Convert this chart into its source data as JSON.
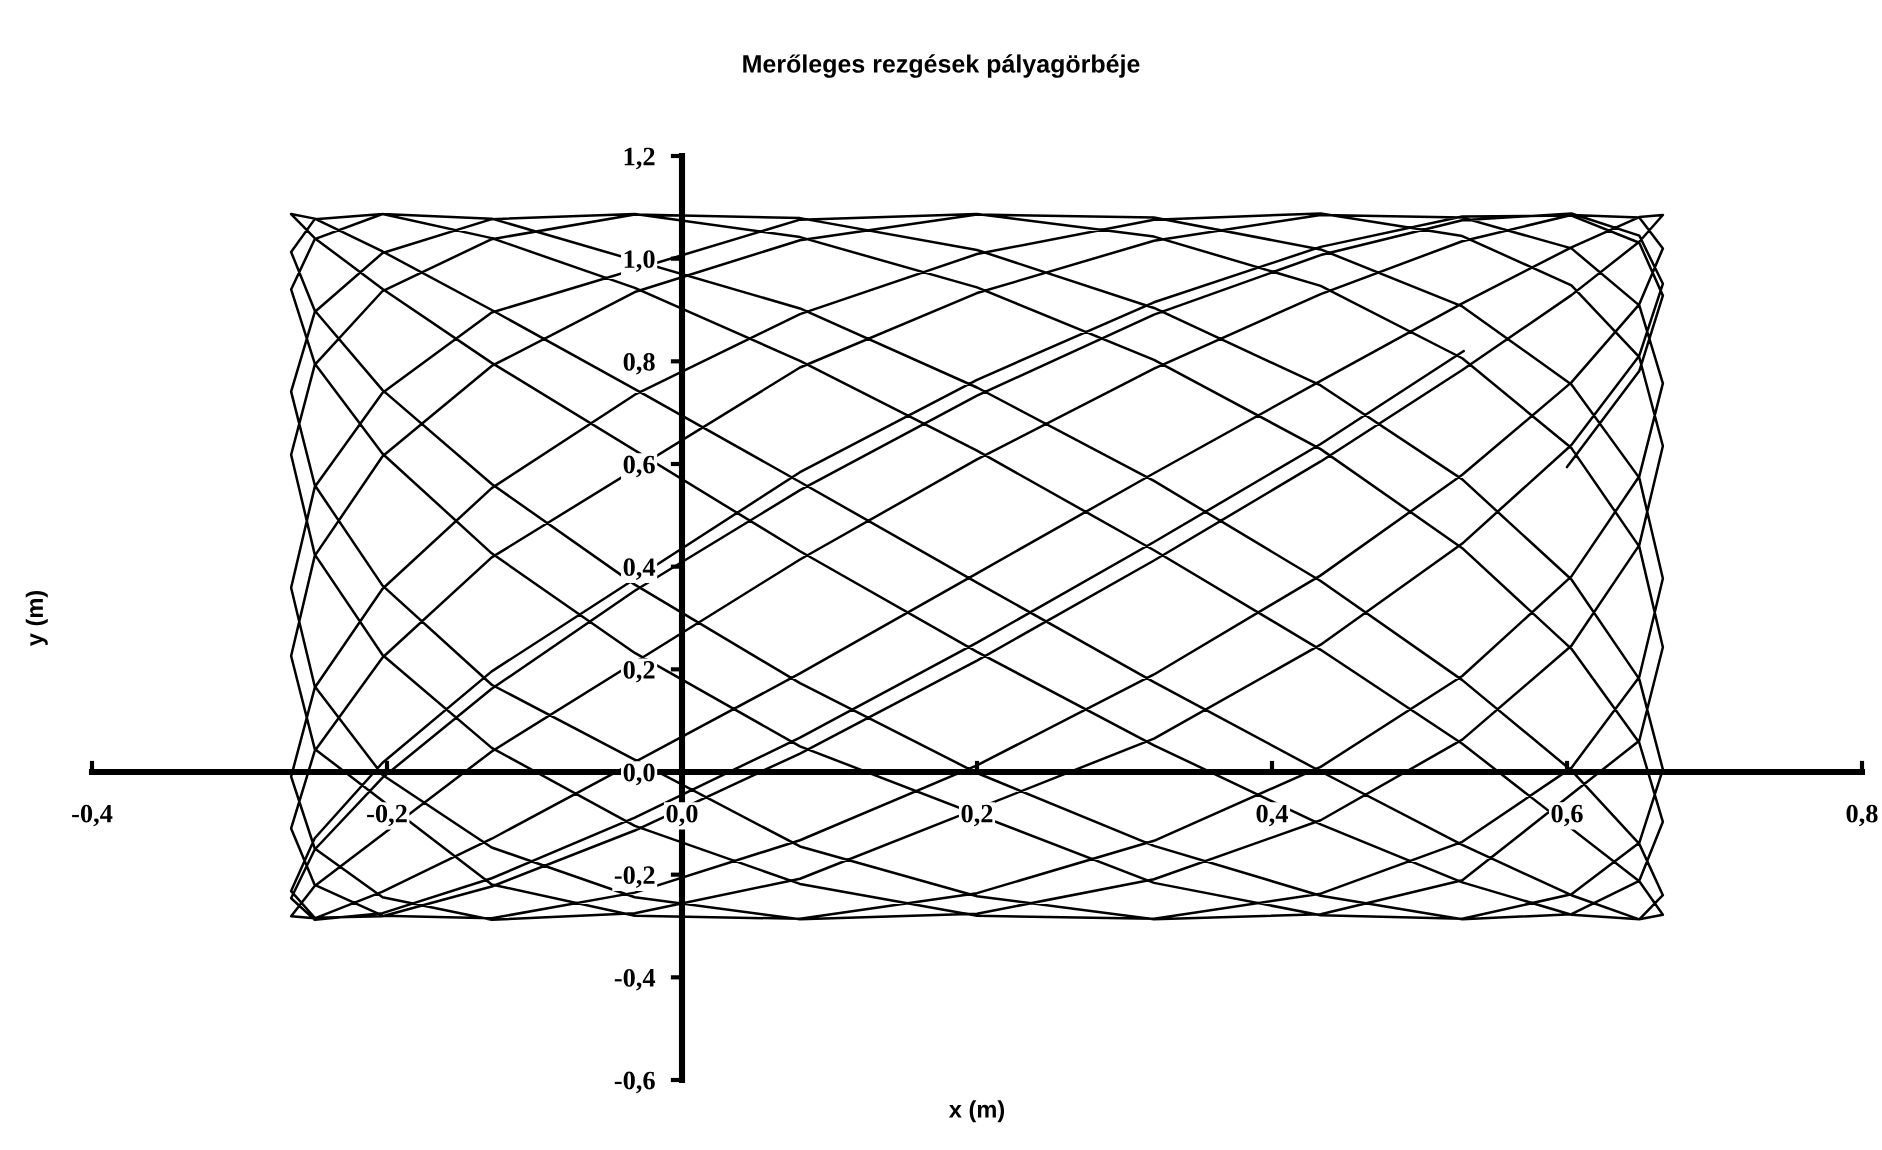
{
  "chart_data": {
    "type": "line",
    "title": "Merőleges rezgések pályagörbéje",
    "xlabel": "x (m)",
    "ylabel": "y (m)",
    "xlim": [
      -0.4,
      0.8
    ],
    "ylim": [
      -0.6,
      1.2
    ],
    "xticks": [
      {
        "value": -0.4,
        "label": "-0,4"
      },
      {
        "value": -0.2,
        "label": "-0,2"
      },
      {
        "value": 0,
        "label": "0,0"
      },
      {
        "value": 0.2,
        "label": "0,2"
      },
      {
        "value": 0.4,
        "label": "0,4"
      },
      {
        "value": 0.6,
        "label": "0,6"
      },
      {
        "value": 0.8,
        "label": "0,8"
      }
    ],
    "yticks": [
      {
        "value": -0.6,
        "label": "-0,6"
      },
      {
        "value": -0.4,
        "label": "-0,4"
      },
      {
        "value": -0.2,
        "label": "-0,2"
      },
      {
        "value": 0,
        "label": "0,0"
      },
      {
        "value": 0.2,
        "label": "0,2"
      },
      {
        "value": 0.4,
        "label": "0,4"
      },
      {
        "value": 0.6,
        "label": "0,6"
      },
      {
        "value": 0.8,
        "label": "0,8"
      },
      {
        "value": 1.0,
        "label": "1,0"
      },
      {
        "value": 1.2,
        "label": "1,2"
      }
    ],
    "series": [
      {
        "color": "#000000",
        "x": [
          0.6,
          0.649,
          0.665,
          0.649,
          0.603,
          0.529,
          0.433,
          0.32,
          0.2,
          0.08,
          -0.129,
          -0.203,
          -0.249,
          -0.265,
          -0.249,
          -0.203,
          -0.129,
          -0.032,
          0.08,
          0.2,
          0.32,
          0.433,
          0.529,
          0.603,
          0.649,
          0.665,
          0.649,
          0.603,
          0.529,
          0.433,
          0.32,
          0.2,
          0.08,
          -0.129,
          -0.203,
          -0.249,
          -0.265,
          -0.249,
          -0.129,
          0.08,
          0.2,
          0.32,
          0.433,
          0.529,
          0.603,
          0.649,
          0.665,
          0.649,
          0.603,
          0.529,
          0.433,
          0.32,
          0.2,
          0.08,
          -0.032,
          -0.129,
          -0.203,
          -0.249,
          -0.265,
          -0.249,
          -0.203,
          -0.129,
          0.08,
          0.2,
          0.32,
          0.433,
          0.529,
          0.603,
          0.649,
          0.665,
          0.649,
          0.603,
          0.529,
          0.433,
          0.32,
          0.2,
          0.08,
          -0.032,
          -0.129,
          -0.249,
          -0.265,
          -0.249,
          -0.203,
          -0.129,
          -0.032,
          0.08,
          0.2,
          0.32,
          0.433,
          0.529,
          0.603,
          0.649,
          0.665,
          0.649,
          0.603,
          0.529,
          0.433,
          0.32,
          0.2,
          0.08,
          -0.032,
          -0.129,
          -0.203,
          -0.249,
          -0.265,
          -0.249,
          -0.203,
          -0.129,
          -0.032,
          0.08,
          0.2,
          0.32,
          0.433,
          0.529,
          0.603,
          0.649,
          0.665,
          0.649,
          0.603,
          0.529,
          0.433,
          0.32,
          0.08,
          -0.032,
          -0.129,
          -0.203,
          -0.249,
          -0.265,
          -0.249,
          -0.203,
          -0.129,
          0.08,
          0.2,
          0.32,
          0.433,
          0.529,
          0.603,
          0.649,
          0.665,
          0.649,
          0.603,
          0.529,
          0.433,
          0.32,
          0.2,
          0.08,
          -0.129,
          -0.203,
          -0.249,
          -0.265,
          -0.249,
          -0.203,
          -0.129,
          -0.032,
          0.08,
          0.2,
          0.32,
          0.433,
          0.529,
          0.603,
          0.649,
          0.665,
          0.649,
          0.529,
          0.433,
          0.32,
          0.2,
          0.08,
          -0.032,
          -0.129,
          -0.203,
          -0.249,
          -0.265,
          -0.249,
          -0.203,
          -0.129,
          -0.032,
          0.08,
          0.2,
          0.32,
          0.433,
          0.529,
          0.603,
          0.649,
          0.665,
          0.649,
          0.603,
          0.529,
          0.433,
          0.32,
          0.2,
          0.08,
          -0.032,
          -0.129,
          -0.203,
          -0.249,
          -0.265,
          -0.249,
          -0.203,
          -0.129,
          0.08,
          0.2,
          0.32,
          0.433,
          0.529,
          0.649,
          0.665,
          0.649,
          0.603,
          0.529,
          0.433,
          0.32,
          0.2,
          0.08,
          -0.129,
          -0.203,
          -0.249,
          -0.265,
          -0.249,
          -0.203,
          -0.129,
          -0.032,
          0.08,
          0.2,
          0.32,
          0.433,
          0.529,
          0.603,
          0.649,
          0.665,
          0.649,
          0.603,
          0.529,
          0.433,
          0.32,
          0.2,
          0.08,
          -0.032,
          -0.129,
          -0.203,
          -0.249,
          -0.265,
          -0.249,
          -0.203,
          -0.129,
          -0.032,
          0.08,
          0.32,
          0.433,
          0.529,
          0.603,
          0.649,
          0.665,
          0.649,
          0.603,
          0.529,
          0.433,
          0.32,
          0.2,
          0.08,
          -0.032,
          -0.129,
          -0.203,
          -0.249,
          -0.265,
          -0.249,
          -0.203,
          -0.129,
          -0.032,
          0.08,
          0.2,
          0.32,
          0.433,
          0.53
        ],
        "values": [
          0.594,
          0.781,
          0.928,
          1.031,
          1.084,
          1.082,
          1.023,
          0.915,
          0.764,
          0.584,
          0.196,
          0.018,
          -0.129,
          -0.232,
          -0.284,
          -0.281,
          -0.223,
          -0.114,
          0.036,
          0.217,
          0.412,
          0.605,
          0.783,
          0.929,
          1.033,
          1.085,
          1.081,
          1.022,
          0.913,
          0.762,
          0.582,
          0.387,
          0.192,
          -0.13,
          -0.233,
          -0.285,
          -0.281,
          -0.222,
          0.04,
          0.414,
          0.609,
          0.786,
          0.931,
          1.034,
          1.085,
          1.08,
          1.02,
          0.911,
          0.759,
          0.579,
          0.383,
          0.19,
          0.013,
          -0.133,
          -0.235,
          -0.285,
          -0.28,
          -0.22,
          -0.11,
          0.041,
          0.223,
          0.418,
          0.788,
          0.933,
          1.035,
          1.085,
          1.08,
          1.02,
          0.909,
          0.757,
          0.576,
          0.381,
          0.187,
          0.01,
          -0.134,
          -0.236,
          -0.286,
          -0.28,
          -0.219,
          0.045,
          0.226,
          0.421,
          0.615,
          0.791,
          0.935,
          1.036,
          1.086,
          1.08,
          1.018,
          0.907,
          0.755,
          0.573,
          0.377,
          0.185,
          0.008,
          -0.136,
          -0.237,
          -0.286,
          -0.28,
          -0.218,
          -0.105,
          0.047,
          0.228,
          0.424,
          0.618,
          0.793,
          0.937,
          1.038,
          1.086,
          1.079,
          1.017,
          0.904,
          0.753,
          0.57,
          0.375,
          0.181,
          0.005,
          -0.138,
          -0.238,
          -0.286,
          -0.279,
          -0.216,
          0.05,
          0.232,
          0.426,
          0.62,
          0.796,
          0.94,
          1.038,
          1.087,
          1.078,
          0.903,
          0.749,
          0.567,
          0.372,
          0.179,
          0.003,
          -0.14,
          -0.24,
          -0.287,
          -0.278,
          -0.215,
          -0.102,
          0.052,
          0.234,
          0.43,
          0.797,
          0.941,
          1.04,
          1.087,
          1.078,
          1.014,
          0.9,
          0.746,
          0.565,
          0.369,
          0.175,
          0.001,
          -0.142,
          -0.24,
          -0.287,
          -0.278,
          -0.213,
          0.055,
          0.238,
          0.432,
          0.626,
          0.801,
          0.943,
          1.04,
          1.087,
          1.077,
          1.013,
          0.899,
          0.744,
          0.561,
          0.365,
          0.173,
          -0.002,
          -0.144,
          -0.241,
          -0.287,
          -0.277,
          -0.212,
          -0.097,
          0.057,
          0.24,
          0.436,
          0.629,
          0.803,
          0.944,
          1.042,
          1.087,
          1.077,
          1.011,
          0.896,
          0.741,
          0.559,
          0.363,
          0.17,
          -0.145,
          -0.242,
          -0.287,
          -0.277,
          -0.211,
          0.061,
          0.243,
          0.439,
          0.631,
          0.806,
          0.947,
          1.043,
          1.087,
          1.076,
          0.895,
          0.739,
          0.555,
          0.359,
          0.167,
          -0.006,
          -0.147,
          -0.244,
          -0.287,
          -0.276,
          -0.209,
          -0.094,
          0.063,
          0.246,
          0.442,
          0.635,
          0.808,
          0.948,
          1.044,
          1.088,
          1.076,
          1.009,
          0.892,
          0.735,
          0.553,
          0.357,
          0.164,
          -0.009,
          -0.149,
          -0.244,
          -0.288,
          -0.275,
          -0.208,
          0.065,
          0.248,
          0.445,
          0.637,
          0.811,
          0.951,
          1.045,
          1.088,
          1.075,
          1.007,
          0.891,
          0.733,
          0.549,
          0.353,
          0.162,
          -0.011,
          -0.151,
          -0.246,
          -0.288,
          -0.275,
          -0.207,
          -0.089,
          0.067,
          0.252,
          0.448,
          0.639,
          0.82
        ]
      }
    ]
  }
}
